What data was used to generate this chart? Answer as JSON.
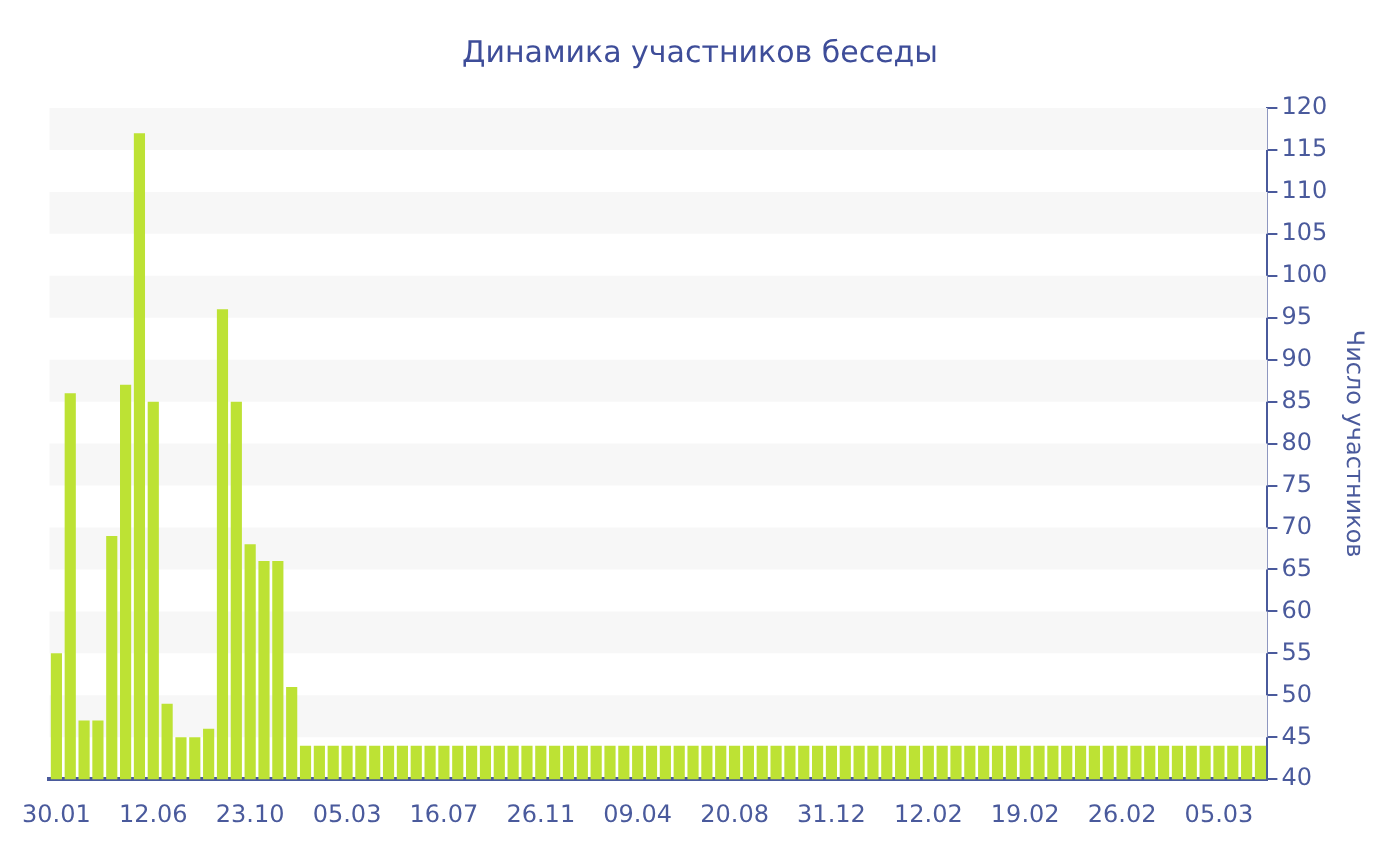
{
  "chart_data": {
    "type": "bar",
    "title": "Динамика участников беседы",
    "ylabel": "Число участников",
    "categories": [
      "30.01",
      null,
      null,
      null,
      null,
      null,
      null,
      "12.06",
      null,
      null,
      null,
      null,
      null,
      null,
      "23.10",
      null,
      null,
      null,
      null,
      null,
      null,
      "05.03",
      null,
      null,
      null,
      null,
      null,
      null,
      "16.07",
      null,
      null,
      null,
      null,
      null,
      null,
      "26.11",
      null,
      null,
      null,
      null,
      null,
      null,
      "09.04",
      null,
      null,
      null,
      null,
      null,
      null,
      "20.08",
      null,
      null,
      null,
      null,
      null,
      null,
      "31.12",
      null,
      null,
      null,
      null,
      null,
      null,
      "12.02",
      null,
      null,
      null,
      null,
      null,
      null,
      "19.02",
      null,
      null,
      null,
      null,
      null,
      null,
      "26.02",
      null,
      null,
      null,
      null,
      null,
      null,
      "05.03",
      null,
      null,
      null
    ],
    "values": [
      55,
      86,
      47,
      47,
      69,
      87,
      117,
      85,
      49,
      45,
      45,
      46,
      96,
      85,
      68,
      66,
      66,
      51,
      44,
      44,
      44,
      44,
      44,
      44,
      44,
      44,
      44,
      44,
      44,
      44,
      44,
      44,
      44,
      44,
      44,
      44,
      44,
      44,
      44,
      44,
      44,
      44,
      44,
      44,
      44,
      44,
      44,
      44,
      44,
      44,
      44,
      44,
      44,
      44,
      44,
      44,
      44,
      44,
      44,
      44,
      44,
      44,
      44,
      44,
      44,
      44,
      44,
      44,
      44,
      44,
      44,
      44,
      44,
      44,
      44,
      44,
      44,
      44,
      44,
      44,
      44,
      44,
      44,
      44,
      44,
      44,
      44,
      44
    ],
    "color": "#bde234",
    "ylim": [
      40,
      120
    ],
    "yticks": [
      40,
      45,
      50,
      55,
      60,
      65,
      70,
      75,
      80,
      85,
      90,
      95,
      100,
      105,
      110,
      115,
      120
    ],
    "bands": [
      {
        "axis": "y",
        "from": 45,
        "to": 50,
        "color": "#f7f7f7"
      },
      {
        "axis": "y",
        "from": 55,
        "to": 60,
        "color": "#f7f7f7"
      },
      {
        "axis": "y",
        "from": 65,
        "to": 70,
        "color": "#f7f7f7"
      },
      {
        "axis": "y",
        "from": 75,
        "to": 80,
        "color": "#f7f7f7"
      },
      {
        "axis": "y",
        "from": 85,
        "to": 90,
        "color": "#f7f7f7"
      },
      {
        "axis": "y",
        "from": 95,
        "to": 100,
        "color": "#f7f7f7"
      },
      {
        "axis": "y",
        "from": 105,
        "to": 110,
        "color": "#f7f7f7"
      },
      {
        "axis": "y",
        "from": 115,
        "to": 120,
        "color": "#f7f7f7"
      }
    ],
    "legend": false
  }
}
